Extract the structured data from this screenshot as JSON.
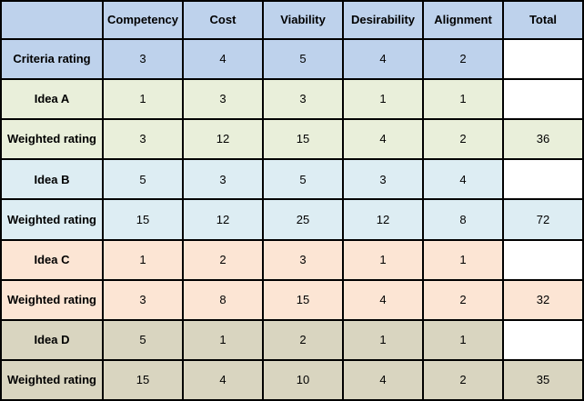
{
  "colors": {
    "blue": "#bed2ec",
    "green": "#e9efda",
    "cyan": "#ddedf3",
    "peach": "#fce5d4",
    "tan": "#d9d5c0",
    "white": "#ffffff",
    "border": "#000000",
    "text": "#000000"
  },
  "chart_data": {
    "type": "table",
    "columns": [
      "",
      "Competency",
      "Cost",
      "Viability",
      "Desirability",
      "Alignment",
      "Total"
    ],
    "rows": [
      {
        "label": "Criteria rating",
        "color": "blue",
        "values": [
          "3",
          "4",
          "5",
          "4",
          "2"
        ],
        "total": "",
        "total_color": "white"
      },
      {
        "label": "Idea A",
        "color": "green",
        "values": [
          "1",
          "3",
          "3",
          "1",
          "1"
        ],
        "total": "",
        "total_color": "white"
      },
      {
        "label": "Weighted rating",
        "color": "green",
        "values": [
          "3",
          "12",
          "15",
          "4",
          "2"
        ],
        "total": "36",
        "total_color": "green"
      },
      {
        "label": "Idea B",
        "color": "cyan",
        "values": [
          "5",
          "3",
          "5",
          "3",
          "4"
        ],
        "total": "",
        "total_color": "white"
      },
      {
        "label": "Weighted rating",
        "color": "cyan",
        "values": [
          "15",
          "12",
          "25",
          "12",
          "8"
        ],
        "total": "72",
        "total_color": "cyan"
      },
      {
        "label": "Idea C",
        "color": "peach",
        "values": [
          "1",
          "2",
          "3",
          "1",
          "1"
        ],
        "total": "",
        "total_color": "white"
      },
      {
        "label": "Weighted rating",
        "color": "peach",
        "values": [
          "3",
          "8",
          "15",
          "4",
          "2"
        ],
        "total": "32",
        "total_color": "peach"
      },
      {
        "label": "Idea D",
        "color": "tan",
        "values": [
          "5",
          "1",
          "2",
          "1",
          "1"
        ],
        "total": "",
        "total_color": "white"
      },
      {
        "label": "Weighted rating",
        "color": "tan",
        "values": [
          "15",
          "4",
          "10",
          "4",
          "2"
        ],
        "total": "35",
        "total_color": "tan"
      }
    ]
  }
}
